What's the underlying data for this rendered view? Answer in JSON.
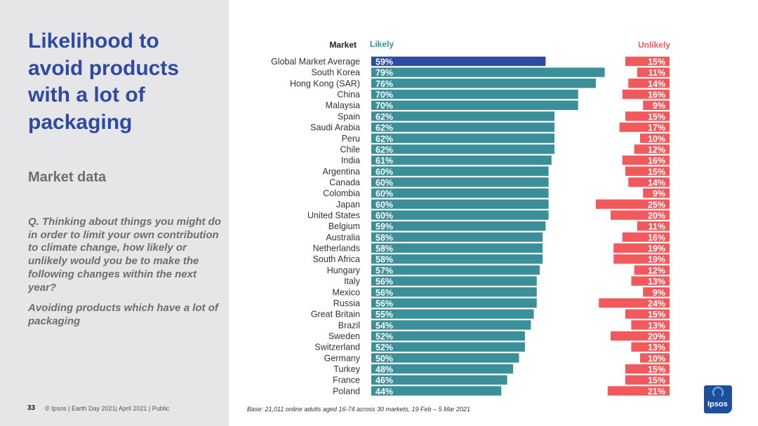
{
  "sidebar": {
    "title": "Likelihood to\navoid products\nwith a lot of\npackaging",
    "subtitle": "Market data",
    "question": "Q. Thinking about things you might do in order to limit your own contribution to climate change, how likely or unlikely would you be to make the following changes within the next year?",
    "statement": "Avoiding products which have a lot of packaging"
  },
  "footer": {
    "page_number": "33",
    "text": "© Ipsos | Earth Day 2021| April 2021 | Public",
    "base_note": "Base: 21,011 online adults aged 16-74 across 30 markets,  19 Feb – 5 Mar 2021"
  },
  "logo": {
    "text": "Ipsos"
  },
  "colors": {
    "title": "#2e4aa3",
    "highlight": "#2e4aa3",
    "likely": "#3a8f98",
    "unlikely": "#f2595c",
    "text": "#333333"
  },
  "chart_data": {
    "type": "bar",
    "orientation": "horizontal",
    "headers": {
      "market": "Market",
      "likely": "Likely",
      "unlikely": "Unlikely"
    },
    "categories": [
      "Global Market Average",
      "South Korea",
      "Hong Kong (SAR)",
      "China",
      "Malaysia",
      "Spain",
      "Saudi Arabia",
      "Peru",
      "Chile",
      "India",
      "Argentina",
      "Canada",
      "Colombia",
      "Japan",
      "United States",
      "Belgium",
      "Australia",
      "Netherlands",
      "South Africa",
      "Hungary",
      "Italy",
      "Mexico",
      "Russia",
      "Great Britain",
      "Brazil",
      "Sweden",
      "Switzerland",
      "Germany",
      "Turkey",
      "France",
      "Poland"
    ],
    "series": [
      {
        "name": "Likely",
        "values": [
          59,
          79,
          76,
          70,
          70,
          62,
          62,
          62,
          62,
          61,
          60,
          60,
          60,
          60,
          60,
          59,
          58,
          58,
          58,
          57,
          56,
          56,
          56,
          55,
          54,
          52,
          52,
          50,
          48,
          46,
          44
        ]
      },
      {
        "name": "Unlikely",
        "values": [
          15,
          11,
          14,
          16,
          9,
          15,
          17,
          10,
          12,
          16,
          15,
          14,
          9,
          25,
          20,
          11,
          16,
          19,
          19,
          12,
          13,
          9,
          24,
          15,
          13,
          20,
          13,
          10,
          15,
          15,
          21
        ]
      }
    ],
    "value_suffix": "%",
    "highlight_index": 0
  }
}
